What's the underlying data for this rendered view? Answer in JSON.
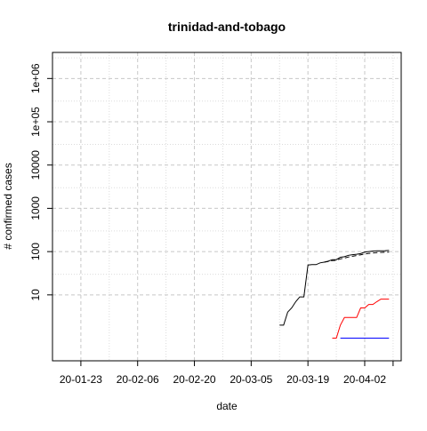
{
  "chart_data": {
    "type": "line",
    "title": "trinidad-and-tobago",
    "xlabel": "date",
    "ylabel": "# confirmed cases",
    "x_axis": {
      "type": "date",
      "range": [
        "2020-01-16",
        "2020-04-11"
      ],
      "ticks": [
        "2020-01-23",
        "2020-02-06",
        "2020-02-20",
        "2020-03-05",
        "2020-03-19",
        "2020-04-02"
      ],
      "tick_labels": [
        "20-01-23",
        "20-02-06",
        "20-02-20",
        "20-03-05",
        "20-03-19",
        "20-04-02"
      ],
      "minor_grid": [
        "2020-01-30",
        "2020-02-13",
        "2020-02-27",
        "2020-03-12",
        "2020-03-26",
        "2020-04-09"
      ]
    },
    "y_axis": {
      "scale": "log10",
      "range": [
        0.3,
        4000000
      ],
      "ticks": [
        10,
        100,
        1000,
        10000,
        100000,
        1000000
      ],
      "tick_labels": [
        "10",
        "100",
        "1000",
        "10000",
        "1e+05",
        "1e+06"
      ],
      "minor_grid": [
        30,
        300,
        3000,
        30000,
        300000,
        3000000
      ]
    },
    "grid": true,
    "series": [
      {
        "color": "#000000",
        "dash": "solid",
        "points": [
          [
            "2020-03-12",
            2
          ],
          [
            "2020-03-13",
            2
          ],
          [
            "2020-03-14",
            4
          ],
          [
            "2020-03-15",
            5
          ],
          [
            "2020-03-16",
            7
          ],
          [
            "2020-03-17",
            9
          ],
          [
            "2020-03-18",
            9
          ],
          [
            "2020-03-19",
            49
          ],
          [
            "2020-03-20",
            50
          ],
          [
            "2020-03-21",
            50
          ],
          [
            "2020-03-22",
            55
          ],
          [
            "2020-03-23",
            57
          ],
          [
            "2020-03-24",
            60
          ],
          [
            "2020-03-25",
            65
          ],
          [
            "2020-03-26",
            65
          ],
          [
            "2020-03-27",
            74
          ],
          [
            "2020-03-28",
            76
          ],
          [
            "2020-03-29",
            82
          ],
          [
            "2020-03-30",
            85
          ],
          [
            "2020-03-31",
            87
          ],
          [
            "2020-04-01",
            90
          ],
          [
            "2020-04-02",
            98
          ],
          [
            "2020-04-03",
            100
          ],
          [
            "2020-04-04",
            103
          ],
          [
            "2020-04-05",
            104
          ],
          [
            "2020-04-06",
            104
          ],
          [
            "2020-04-07",
            105
          ],
          [
            "2020-04-08",
            107
          ]
        ]
      },
      {
        "color": "#000000",
        "dash": "dashed",
        "points": [
          [
            "2020-03-23",
            57
          ],
          [
            "2020-03-24",
            59
          ],
          [
            "2020-03-25",
            62
          ],
          [
            "2020-03-26",
            63
          ],
          [
            "2020-03-27",
            68
          ],
          [
            "2020-03-28",
            71
          ],
          [
            "2020-03-29",
            75
          ],
          [
            "2020-03-30",
            78
          ],
          [
            "2020-03-31",
            81
          ],
          [
            "2020-04-01",
            84
          ],
          [
            "2020-04-02",
            88
          ],
          [
            "2020-04-03",
            91
          ],
          [
            "2020-04-04",
            93
          ],
          [
            "2020-04-05",
            95
          ],
          [
            "2020-04-06",
            96
          ],
          [
            "2020-04-07",
            97
          ],
          [
            "2020-04-08",
            98
          ]
        ]
      },
      {
        "color": "#ff0000",
        "dash": "solid",
        "points": [
          [
            "2020-03-25",
            1
          ],
          [
            "2020-03-26",
            1
          ],
          [
            "2020-03-27",
            2
          ],
          [
            "2020-03-28",
            3
          ],
          [
            "2020-03-29",
            3
          ],
          [
            "2020-03-30",
            3
          ],
          [
            "2020-03-31",
            3
          ],
          [
            "2020-04-01",
            5
          ],
          [
            "2020-04-02",
            5
          ],
          [
            "2020-04-03",
            6
          ],
          [
            "2020-04-04",
            6
          ],
          [
            "2020-04-05",
            7
          ],
          [
            "2020-04-06",
            8
          ],
          [
            "2020-04-07",
            8
          ],
          [
            "2020-04-08",
            8
          ]
        ]
      },
      {
        "color": "#0000ff",
        "dash": "solid",
        "points": [
          [
            "2020-03-27",
            1
          ],
          [
            "2020-04-08",
            1
          ]
        ]
      }
    ]
  }
}
